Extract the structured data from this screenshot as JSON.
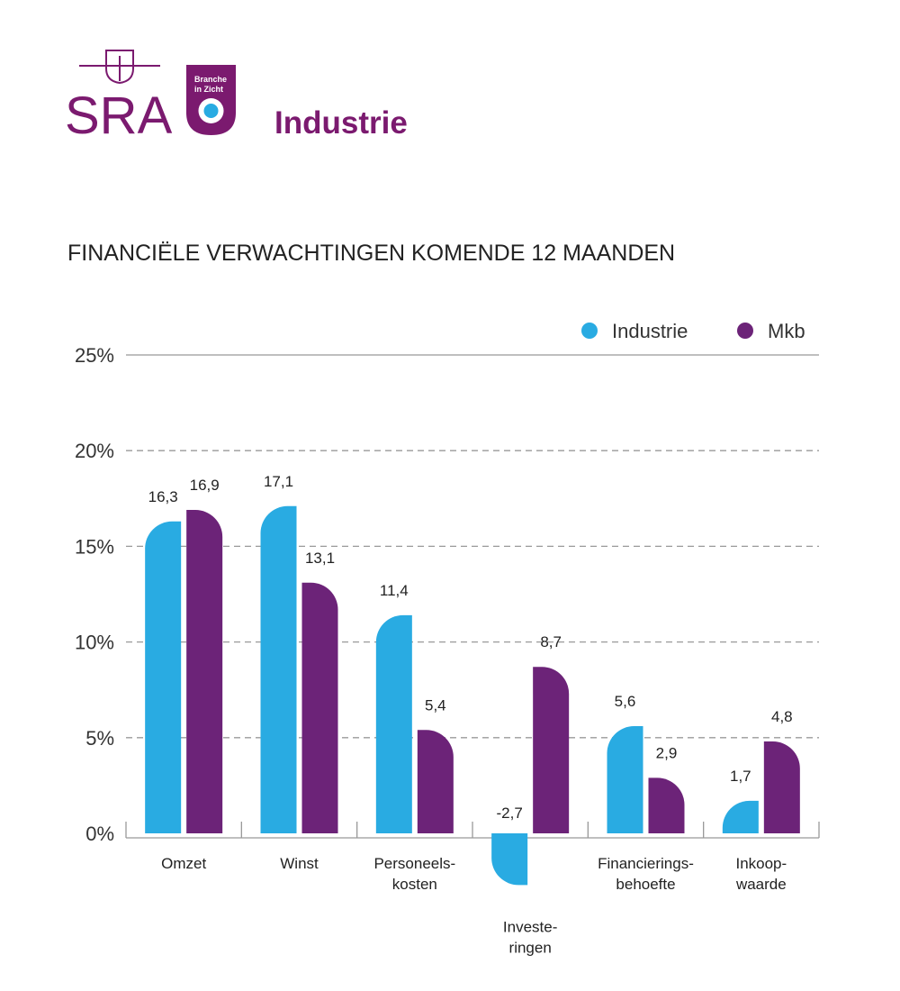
{
  "header": {
    "logo": "SRA",
    "badge": [
      "Branche",
      "in Zicht"
    ],
    "title": "Industrie"
  },
  "chart_data": {
    "type": "bar",
    "title": "FINANCIËLE VERWACHTINGEN KOMENDE 12 MAANDEN",
    "categories": [
      [
        "Omzet"
      ],
      [
        "Winst"
      ],
      [
        "Personeels-",
        "kosten"
      ],
      [
        "Investe-",
        "ringen"
      ],
      [
        "Financierings-",
        "behoefte"
      ],
      [
        "Inkoop-",
        "waarde"
      ]
    ],
    "series": [
      {
        "name": "Industrie",
        "color": "#29abe2",
        "values": [
          16.3,
          17.1,
          11.4,
          -2.7,
          5.6,
          1.7
        ],
        "value_labels": [
          "16,3",
          "17,1",
          "11,4",
          "-2,7",
          "5,6",
          "1,7"
        ]
      },
      {
        "name": "Mkb",
        "color": "#6c2378",
        "values": [
          16.9,
          13.1,
          5.4,
          8.7,
          2.9,
          4.8
        ],
        "value_labels": [
          "16,9",
          "13,1",
          "5,4",
          "8,7",
          "2,9",
          "4,8"
        ]
      }
    ],
    "ylim": [
      0,
      25
    ],
    "yticks": [
      {
        "value": 0,
        "label": "0%"
      },
      {
        "value": 5,
        "label": "5%"
      },
      {
        "value": 10,
        "label": "10%"
      },
      {
        "value": 15,
        "label": "15%"
      },
      {
        "value": 20,
        "label": "20%"
      },
      {
        "value": 25,
        "label": "25%"
      }
    ],
    "grid": true,
    "legend": "top-right"
  }
}
